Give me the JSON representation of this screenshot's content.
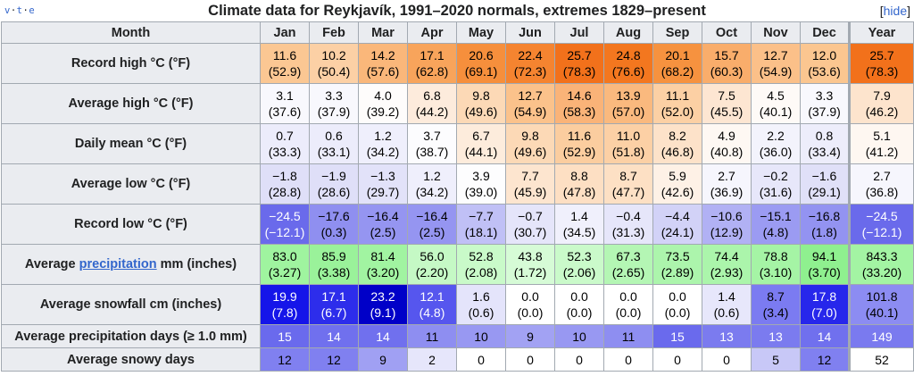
{
  "caption": {
    "title": "Climate data for Reykjavík, 1991–2020 normals, extremes 1829–present",
    "vte": [
      "v",
      "t",
      "e"
    ],
    "hide_label": "hide"
  },
  "header": {
    "month_label": "Month",
    "months": [
      "Jan",
      "Feb",
      "Mar",
      "Apr",
      "May",
      "Jun",
      "Jul",
      "Aug",
      "Sep",
      "Oct",
      "Nov",
      "Dec",
      "Year"
    ]
  },
  "rows": [
    {
      "label_pre": "Record high °C (°F)",
      "label_link": "",
      "label_post": "",
      "size": "r2",
      "cells": [
        [
          "11.6",
          "(52.9)",
          "#fbc793",
          "#000000"
        ],
        [
          "10.2",
          "(50.4)",
          "#fcd0a5",
          "#000000"
        ],
        [
          "14.2",
          "(57.6)",
          "#fab77a",
          "#000000"
        ],
        [
          "17.1",
          "(62.8)",
          "#f8a45b",
          "#000000"
        ],
        [
          "20.6",
          "(69.1)",
          "#f68f3c",
          "#000000"
        ],
        [
          "22.4",
          "(72.3)",
          "#f58430",
          "#000000"
        ],
        [
          "25.7",
          "(78.3)",
          "#f2711b",
          "#000000"
        ],
        [
          "24.8",
          "(76.6)",
          "#f3771f",
          "#000000"
        ],
        [
          "20.1",
          "(68.2)",
          "#f6923f",
          "#000000"
        ],
        [
          "15.7",
          "(60.3)",
          "#f9ad6b",
          "#000000"
        ],
        [
          "12.7",
          "(54.9)",
          "#fbc089",
          "#000000"
        ],
        [
          "12.0",
          "(53.6)",
          "#fbc690",
          "#000000"
        ],
        [
          "25.7",
          "(78.3)",
          "#f2711b",
          "#000000"
        ]
      ]
    },
    {
      "label_pre": "Average high °C (°F)",
      "label_link": "",
      "label_post": "",
      "size": "r2",
      "cells": [
        [
          "3.1",
          "(37.6)",
          "#f8f8fd",
          "#000000"
        ],
        [
          "3.3",
          "(37.9)",
          "#f8f8fd",
          "#000000"
        ],
        [
          "4.0",
          "(39.2)",
          "#fefcfb",
          "#000000"
        ],
        [
          "6.8",
          "(44.2)",
          "#fdebdc",
          "#000000"
        ],
        [
          "9.8",
          "(49.6)",
          "#fcd9b6",
          "#000000"
        ],
        [
          "12.7",
          "(54.9)",
          "#fbc28b",
          "#000000"
        ],
        [
          "14.6",
          "(58.3)",
          "#fab378",
          "#000000"
        ],
        [
          "13.9",
          "(57.0)",
          "#fab97e",
          "#000000"
        ],
        [
          "11.1",
          "(52.0)",
          "#fcd0a4",
          "#000000"
        ],
        [
          "7.5",
          "(45.5)",
          "#fde6d2",
          "#000000"
        ],
        [
          "4.5",
          "(40.1)",
          "#fefaf7",
          "#000000"
        ],
        [
          "3.3",
          "(37.9)",
          "#f8f8fd",
          "#000000"
        ],
        [
          "7.9",
          "(46.2)",
          "#fde4cd",
          "#000000"
        ]
      ]
    },
    {
      "label_pre": "Daily mean °C (°F)",
      "label_link": "",
      "label_post": "",
      "size": "r2",
      "cells": [
        [
          "0.7",
          "(33.3)",
          "#ececfb",
          "#000000"
        ],
        [
          "0.6",
          "(33.1)",
          "#ececfb",
          "#000000"
        ],
        [
          "1.2",
          "(34.2)",
          "#efeffc",
          "#000000"
        ],
        [
          "3.7",
          "(38.7)",
          "#fcfcfe",
          "#000000"
        ],
        [
          "6.7",
          "(44.1)",
          "#fdecdc",
          "#000000"
        ],
        [
          "9.8",
          "(49.6)",
          "#fcd9b6",
          "#000000"
        ],
        [
          "11.6",
          "(52.9)",
          "#fbcd9f",
          "#000000"
        ],
        [
          "11.0",
          "(51.8)",
          "#fcd0a5",
          "#000000"
        ],
        [
          "8.2",
          "(46.8)",
          "#fde2c9",
          "#000000"
        ],
        [
          "4.9",
          "(40.8)",
          "#fef8f3",
          "#000000"
        ],
        [
          "2.2",
          "(36.0)",
          "#f3f3fc",
          "#000000"
        ],
        [
          "0.8",
          "(33.4)",
          "#ededfb",
          "#000000"
        ],
        [
          "5.1",
          "(41.2)",
          "#fef7f1",
          "#000000"
        ]
      ]
    },
    {
      "label_pre": "Average low °C (°F)",
      "label_link": "",
      "label_post": "",
      "size": "r2",
      "cells": [
        [
          "−1.8",
          "(28.8)",
          "#dfdff8",
          "#000000"
        ],
        [
          "−1.9",
          "(28.6)",
          "#dfdff8",
          "#000000"
        ],
        [
          "−1.3",
          "(29.7)",
          "#e2e2f9",
          "#000000"
        ],
        [
          "1.2",
          "(34.2)",
          "#efeffc",
          "#000000"
        ],
        [
          "3.9",
          "(39.0)",
          "#fdfdfe",
          "#000000"
        ],
        [
          "7.7",
          "(45.9)",
          "#fde5cf",
          "#000000"
        ],
        [
          "8.8",
          "(47.8)",
          "#fddfc3",
          "#000000"
        ],
        [
          "8.7",
          "(47.7)",
          "#fde0c4",
          "#000000"
        ],
        [
          "5.9",
          "(42.6)",
          "#fef1e6",
          "#000000"
        ],
        [
          "2.7",
          "(36.9)",
          "#f6f6fd",
          "#000000"
        ],
        [
          "−0.2",
          "(31.6)",
          "#e7e7fa",
          "#000000"
        ],
        [
          "−1.6",
          "(29.1)",
          "#e0e0f8",
          "#000000"
        ],
        [
          "2.7",
          "(36.8)",
          "#f6f6fd",
          "#000000"
        ]
      ]
    },
    {
      "label_pre": "Record low °C (°F)",
      "label_link": "",
      "label_post": "",
      "size": "r2",
      "cells": [
        [
          "−24.5",
          "(−12.1)",
          "#6a6aeb",
          "#ffffff"
        ],
        [
          "−17.6",
          "(0.3)",
          "#8f8ff0",
          "#000000"
        ],
        [
          "−16.4",
          "(2.5)",
          "#9595f1",
          "#000000"
        ],
        [
          "−16.4",
          "(2.5)",
          "#9595f1",
          "#000000"
        ],
        [
          "−7.7",
          "(18.1)",
          "#c0c0f6",
          "#000000"
        ],
        [
          "−0.7",
          "(30.7)",
          "#e5e5fa",
          "#000000"
        ],
        [
          "1.4",
          "(34.5)",
          "#f0f0fc",
          "#000000"
        ],
        [
          "−0.4",
          "(31.3)",
          "#e6e6fa",
          "#000000"
        ],
        [
          "−4.4",
          "(24.1)",
          "#d2d2f7",
          "#000000"
        ],
        [
          "−10.6",
          "(12.9)",
          "#b1b1f4",
          "#000000"
        ],
        [
          "−15.1",
          "(4.8)",
          "#9b9bf2",
          "#000000"
        ],
        [
          "−16.8",
          "(1.8)",
          "#9393f1",
          "#000000"
        ],
        [
          "−24.5",
          "(−12.1)",
          "#6a6aeb",
          "#ffffff"
        ]
      ]
    },
    {
      "label_pre": "Average ",
      "label_link": "precipitation",
      "label_post": " mm (inches)",
      "size": "r2",
      "cells": [
        [
          "83.0",
          "(3.27)",
          "#9ff49f",
          "#000000"
        ],
        [
          "85.9",
          "(3.38)",
          "#9af29a",
          "#000000"
        ],
        [
          "81.4",
          "(3.20)",
          "#a1f4a1",
          "#000000"
        ],
        [
          "56.0",
          "(2.20)",
          "#c5f9c5",
          "#000000"
        ],
        [
          "52.8",
          "(2.08)",
          "#c9fac9",
          "#000000"
        ],
        [
          "43.8",
          "(1.72)",
          "#d6fbd6",
          "#000000"
        ],
        [
          "52.3",
          "(2.06)",
          "#cafaca",
          "#000000"
        ],
        [
          "67.3",
          "(2.65)",
          "#b4f6b4",
          "#000000"
        ],
        [
          "73.5",
          "(2.89)",
          "#acf5ac",
          "#000000"
        ],
        [
          "74.4",
          "(2.93)",
          "#abf5ab",
          "#000000"
        ],
        [
          "78.8",
          "(3.10)",
          "#a5f4a5",
          "#000000"
        ],
        [
          "94.1",
          "(3.70)",
          "#8ff08f",
          "#000000"
        ],
        [
          "843.3",
          "(33.20)",
          "#a3f4a3",
          "#000000"
        ]
      ]
    },
    {
      "label_pre": "Average snowfall cm (inches)",
      "label_link": "",
      "label_post": "",
      "size": "r2",
      "cells": [
        [
          "19.9",
          "(7.8)",
          "#1515e9",
          "#ffffff"
        ],
        [
          "17.1",
          "(6.7)",
          "#2d2deb",
          "#ffffff"
        ],
        [
          "23.2",
          "(9.1)",
          "#0000c8",
          "#ffffff"
        ],
        [
          "12.1",
          "(4.8)",
          "#5656ee",
          "#ffffff"
        ],
        [
          "1.6",
          "(0.6)",
          "#e4e4fb",
          "#000000"
        ],
        [
          "0.0",
          "(0.0)",
          "#ffffff",
          "#000000"
        ],
        [
          "0.0",
          "(0.0)",
          "#ffffff",
          "#000000"
        ],
        [
          "0.0",
          "(0.0)",
          "#ffffff",
          "#000000"
        ],
        [
          "0.0",
          "(0.0)",
          "#ffffff",
          "#000000"
        ],
        [
          "1.4",
          "(0.6)",
          "#e7e7fb",
          "#000000"
        ],
        [
          "8.7",
          "(3.4)",
          "#7b7bf1",
          "#000000"
        ],
        [
          "17.8",
          "(7.0)",
          "#2727eb",
          "#ffffff"
        ],
        [
          "101.8",
          "(40.1)",
          "#8c8cf2",
          "#000000"
        ]
      ]
    },
    {
      "label_pre": "Average precipitation days (≥ 1.0 mm)",
      "label_link": "",
      "label_post": "",
      "size": "r1",
      "cells": [
        [
          "15",
          "",
          "#6a6aed",
          "#ffffff"
        ],
        [
          "14",
          "",
          "#7070ee",
          "#ffffff"
        ],
        [
          "14",
          "",
          "#7070ee",
          "#ffffff"
        ],
        [
          "11",
          "",
          "#8e8ef1",
          "#000000"
        ],
        [
          "10",
          "",
          "#9898f2",
          "#000000"
        ],
        [
          "9",
          "",
          "#a2a2f3",
          "#000000"
        ],
        [
          "10",
          "",
          "#9898f2",
          "#000000"
        ],
        [
          "11",
          "",
          "#8e8ef1",
          "#000000"
        ],
        [
          "15",
          "",
          "#6a6aed",
          "#ffffff"
        ],
        [
          "13",
          "",
          "#7b7bef",
          "#ffffff"
        ],
        [
          "13",
          "",
          "#7b7bef",
          "#ffffff"
        ],
        [
          "14",
          "",
          "#7070ee",
          "#ffffff"
        ],
        [
          "149",
          "",
          "#7a7aef",
          "#ffffff"
        ]
      ]
    },
    {
      "label_pre": "Average snowy days",
      "label_link": "",
      "label_post": "",
      "size": "r1",
      "cells": [
        [
          "12",
          "",
          "#8080f0",
          "#000000"
        ],
        [
          "12",
          "",
          "#8080f0",
          "#000000"
        ],
        [
          "9",
          "",
          "#a0a0f3",
          "#000000"
        ],
        [
          "2",
          "",
          "#e6e6fb",
          "#000000"
        ],
        [
          "0",
          "",
          "#ffffff",
          "#000000"
        ],
        [
          "0",
          "",
          "#ffffff",
          "#000000"
        ],
        [
          "0",
          "",
          "#ffffff",
          "#000000"
        ],
        [
          "0",
          "",
          "#ffffff",
          "#000000"
        ],
        [
          "0",
          "",
          "#ffffff",
          "#000000"
        ],
        [
          "0",
          "",
          "#ffffff",
          "#000000"
        ],
        [
          "5",
          "",
          "#c8c8f7",
          "#000000"
        ],
        [
          "12",
          "",
          "#8080f0",
          "#000000"
        ],
        [
          "52",
          "",
          "#ffffff",
          "#000000"
        ]
      ]
    }
  ]
}
